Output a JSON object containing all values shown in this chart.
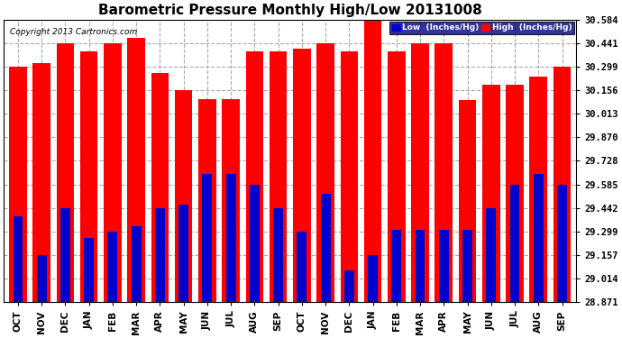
{
  "title": "Barometric Pressure Monthly High/Low 20131008",
  "copyright": "Copyright 2013 Cartronics.com",
  "categories": [
    "OCT",
    "NOV",
    "DEC",
    "JAN",
    "FEB",
    "MAR",
    "APR",
    "MAY",
    "JUN",
    "JUL",
    "AUG",
    "SEP",
    "OCT",
    "NOV",
    "DEC",
    "JAN",
    "FEB",
    "MAR",
    "APR",
    "MAY",
    "JUN",
    "JUL",
    "AUG",
    "SEP"
  ],
  "high_values": [
    30.299,
    30.32,
    30.441,
    30.39,
    30.441,
    30.476,
    30.26,
    30.156,
    30.1,
    30.1,
    30.39,
    30.39,
    30.407,
    30.441,
    30.39,
    30.584,
    30.39,
    30.441,
    30.441,
    30.099,
    30.19,
    30.19,
    30.24,
    30.299
  ],
  "low_values": [
    29.39,
    29.157,
    29.442,
    29.26,
    29.3,
    29.33,
    29.442,
    29.462,
    29.65,
    29.65,
    29.585,
    29.442,
    29.299,
    29.53,
    29.062,
    29.157,
    29.31,
    29.31,
    29.31,
    29.31,
    29.442,
    29.585,
    29.65,
    29.585
  ],
  "yticks": [
    28.871,
    29.014,
    29.157,
    29.299,
    29.442,
    29.585,
    29.728,
    29.87,
    30.013,
    30.156,
    30.299,
    30.441,
    30.584
  ],
  "ymin": 28.871,
  "ymax": 30.584,
  "bar_color_high": "#ff0000",
  "bar_color_low": "#0000cc",
  "bg_color": "#ffffff",
  "grid_color": "#aaaaaa",
  "plot_bg_color": "#ffffff",
  "title_fontsize": 11
}
